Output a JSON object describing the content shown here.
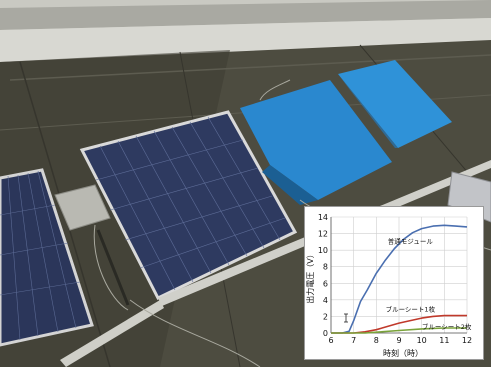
{
  "scene": {
    "description_objects": [
      "rooftop",
      "solar-panels",
      "blue-tarps",
      "concrete-blocks",
      "cables"
    ],
    "colors": {
      "roof": "#4a4a3e",
      "panel": "#2e3a5e",
      "tarp": "#2a86cc",
      "parapet": "#b8b8b2"
    }
  },
  "chart_data": {
    "type": "line",
    "xlabel": "時刻（時）",
    "ylabel": "出力電圧（V）",
    "xlim": [
      6,
      12
    ],
    "ylim": [
      0,
      14
    ],
    "xticks": [
      6,
      7,
      8,
      9,
      10,
      11,
      12
    ],
    "yticks": [
      0,
      2,
      4,
      6,
      8,
      10,
      12,
      14
    ],
    "grid": true,
    "series": [
      {
        "name": "普通モジュール",
        "color": "#4a6fb0",
        "x": [
          6.0,
          6.5,
          6.8,
          7.0,
          7.3,
          7.6,
          8.0,
          8.4,
          8.8,
          9.2,
          9.6,
          10.0,
          10.5,
          11.0,
          11.5,
          12.0
        ],
        "y": [
          0.0,
          0.0,
          0.2,
          1.5,
          3.8,
          5.2,
          7.2,
          8.8,
          10.2,
          11.3,
          12.1,
          12.6,
          12.9,
          13.0,
          12.9,
          12.8
        ]
      },
      {
        "name": "ブルーシート1枚",
        "color": "#c0392b",
        "x": [
          6.0,
          7.0,
          7.5,
          8.0,
          8.5,
          9.0,
          9.5,
          10.0,
          10.5,
          11.0,
          11.5,
          12.0
        ],
        "y": [
          0.0,
          0.0,
          0.15,
          0.4,
          0.8,
          1.2,
          1.5,
          1.8,
          2.0,
          2.1,
          2.1,
          2.1
        ]
      },
      {
        "name": "ブルーシート2枚",
        "color": "#7aa33a",
        "x": [
          6.0,
          7.5,
          8.0,
          9.0,
          10.0,
          11.0,
          12.0
        ],
        "y": [
          0.0,
          0.0,
          0.1,
          0.3,
          0.5,
          0.6,
          0.6
        ]
      }
    ]
  }
}
